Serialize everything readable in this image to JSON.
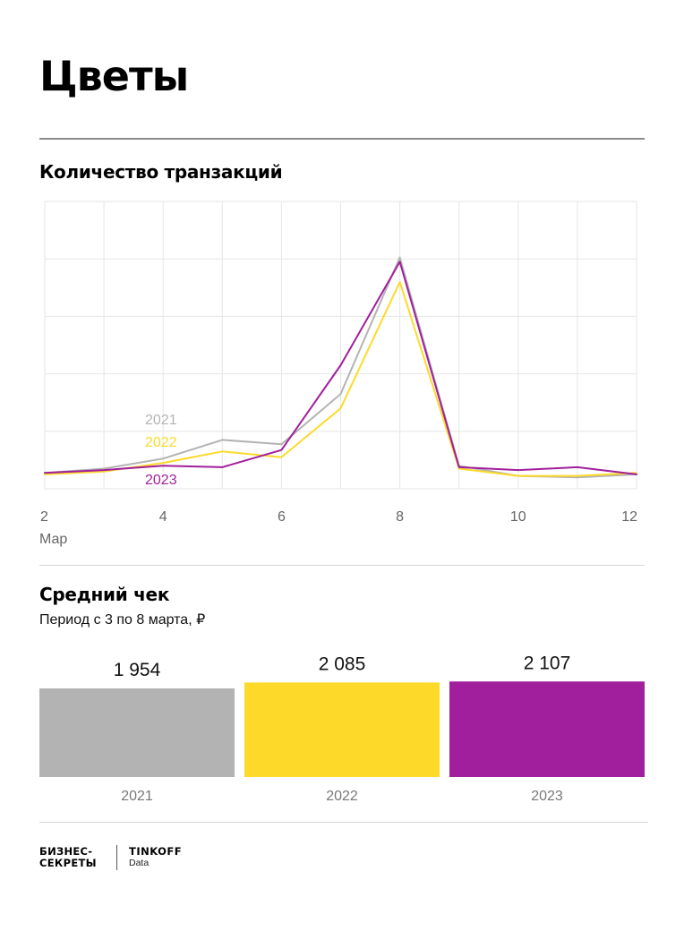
{
  "title": "Цветы",
  "line_section": {
    "title": "Количество транзакций"
  },
  "bar_section": {
    "title": "Средний чек",
    "subtitle": "Период с 3 по 8 марта, ₽"
  },
  "footer": {
    "logo_left_line1": "БИЗНЕС-",
    "logo_left_line2": "СЕКРЕТЫ",
    "logo_right_brand": "TINKOFF",
    "logo_right_sub": "Data"
  },
  "colors": {
    "y2021": "#b3b3b3",
    "y2022": "#fdda2a",
    "y2023": "#a11f9c",
    "grid": "#e6e6e6"
  },
  "chart_data": [
    {
      "type": "line",
      "title": "Количество транзакций",
      "x": [
        2,
        3,
        4,
        5,
        6,
        7,
        8,
        9,
        10,
        11,
        12
      ],
      "xticks": [
        "2",
        "4",
        "6",
        "8",
        "10",
        "12"
      ],
      "xlabel": "Мар",
      "ylim": [
        0,
        100
      ],
      "y_tick_labels_shown": false,
      "grid": true,
      "legend": "inline-left",
      "series": [
        {
          "name": "2021",
          "values": [
            5.5,
            7,
            10.5,
            17,
            15.5,
            33,
            80.5,
            8,
            4.5,
            4,
            5
          ]
        },
        {
          "name": "2022",
          "values": [
            5,
            6,
            9,
            13,
            11,
            28,
            72,
            7,
            4.5,
            4.5,
            5.5
          ]
        },
        {
          "name": "2023",
          "values": [
            5.5,
            6.5,
            8,
            7.5,
            13.5,
            43,
            79,
            7.5,
            6.5,
            7.5,
            5
          ]
        }
      ]
    },
    {
      "type": "bar",
      "title": "Средний чек",
      "subtitle": "Период с 3 по 8 марта, ₽",
      "categories": [
        "2021",
        "2022",
        "2023"
      ],
      "values": [
        1954,
        2085,
        2107
      ],
      "value_labels": [
        "1 954",
        "2 085",
        "2 107"
      ]
    }
  ]
}
